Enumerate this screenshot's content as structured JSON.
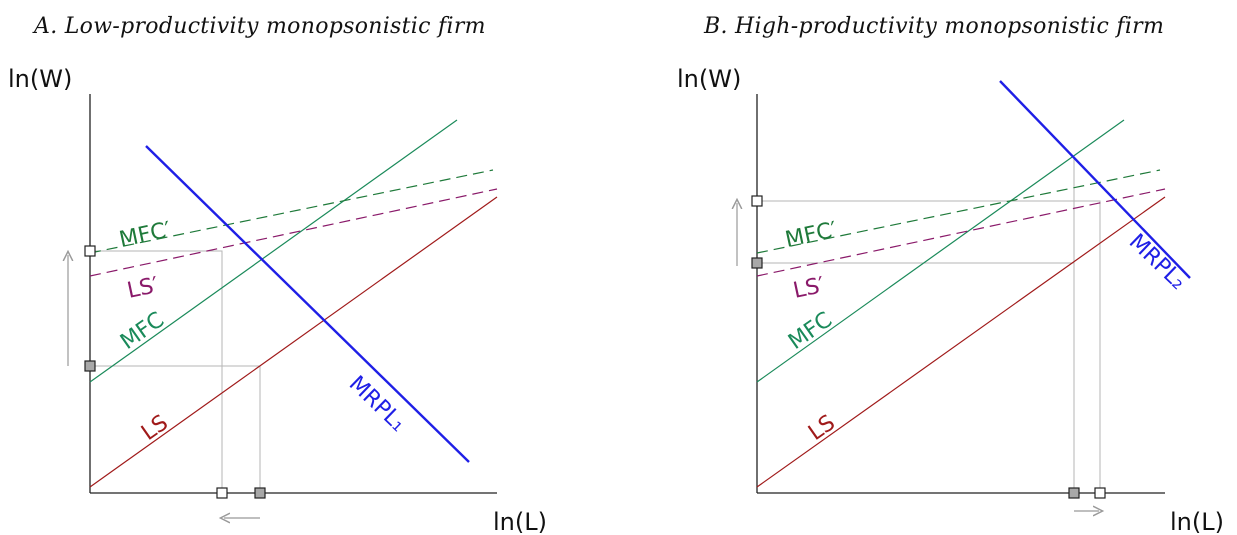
{
  "panels": [
    {
      "title": "A. Low-productivity monopsonistic firm",
      "y_axis_label": "ln(W)",
      "x_axis_label": "ln(L)",
      "curve_labels": {
        "mfc_prime": "MFC′",
        "ls_prime": "LS′",
        "mfc": "MFC",
        "ls": "LS",
        "mrpl": "MRPL₁"
      },
      "wage_shift": "up",
      "employment_shift": "left"
    },
    {
      "title": "B. High-productivity monopsonistic firm",
      "y_axis_label": "ln(W)",
      "x_axis_label": "ln(L)",
      "curve_labels": {
        "mfc_prime": "MFC′",
        "ls_prime": "LS′",
        "mfc": "MFC",
        "ls": "LS",
        "mrpl": "MRPL₂"
      },
      "wage_shift": "up",
      "employment_shift": "right"
    }
  ],
  "colors": {
    "mrpl": "#1f1fe6",
    "mfc": "#1a8a5a",
    "mfc_prime": "#1f7a3a",
    "ls": "#a01a1a",
    "ls_prime": "#8a1a6a",
    "guide": "#b0b0b0",
    "arrow": "#999999",
    "marker_filled": "#a8a8a8"
  }
}
